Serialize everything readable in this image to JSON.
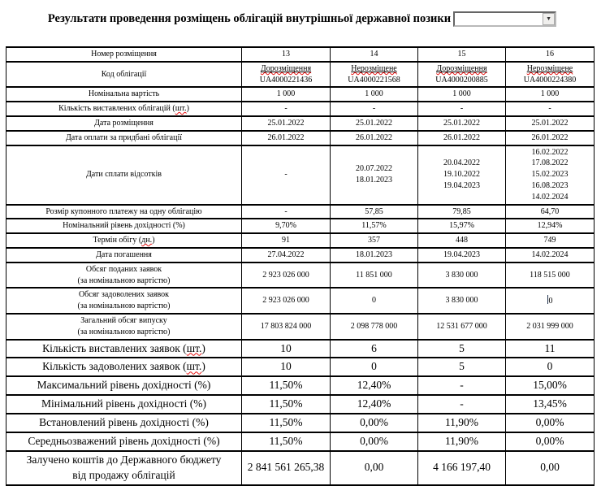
{
  "header": {
    "title": "Результати проведення розміщень облігацій внутрішньої державної позики",
    "combobox": {
      "value": "",
      "dropdown_icon": "▼"
    }
  },
  "colors": {
    "wavy_color": "#e81313",
    "border_color": "#000000",
    "text_color": "#000000"
  },
  "table": {
    "rows": [
      {
        "label": "Номер розміщення",
        "size": "small",
        "cells": [
          "13",
          "14",
          "15",
          "16"
        ]
      },
      {
        "label": "Код облігації",
        "size": "small",
        "cells": [
          {
            "status": "Дорозміщення",
            "code": "UA4000221436"
          },
          {
            "status": "Нерозміщене",
            "code": "UA4000221568"
          },
          {
            "status": "Дорозміщення",
            "code": "UA4000200885"
          },
          {
            "status": "Нерозміщене",
            "code": "UA4000224380"
          }
        ]
      },
      {
        "label": "Номінальна вартість",
        "size": "small",
        "cells": [
          "1 000",
          "1 000",
          "1 000",
          "1 000"
        ]
      },
      {
        "label": "Кількість виставлених облігацій (шт.)",
        "wavy": "шт.",
        "size": "small",
        "cells": [
          "-",
          "-",
          "-",
          "-"
        ]
      },
      {
        "label": "Дата розміщення",
        "size": "small",
        "cells": [
          "25.01.2022",
          "25.01.2022",
          "25.01.2022",
          "25.01.2022"
        ]
      },
      {
        "label": "Дата оплати за придбані облігації",
        "size": "small",
        "cells": [
          "26.01.2022",
          "26.01.2022",
          "26.01.2022",
          "26.01.2022"
        ]
      },
      {
        "label": "Дати сплати відсотків",
        "size": "small",
        "cells": [
          "-",
          {
            "lines": [
              "20.07.2022",
              "18.01.2023"
            ]
          },
          {
            "lines": [
              "20.04.2022",
              "19.10.2022",
              "19.04.2023"
            ]
          },
          {
            "lines": [
              "16.02.2022",
              "17.08.2022",
              "15.02.2023",
              "16.08.2023",
              "14.02.2024"
            ]
          }
        ]
      },
      {
        "label": "Розмір купонного платежу на одну облігацію",
        "size": "small",
        "cells": [
          "-",
          "57,85",
          "79,85",
          "64,70"
        ]
      },
      {
        "label": "Номінальний рівень дохідності (%)",
        "size": "small",
        "cells": [
          "9,70%",
          "11,57%",
          "15,97%",
          "12,94%"
        ]
      },
      {
        "label": "Термін обігу (дн.)",
        "wavy": "дн.",
        "size": "small",
        "cells": [
          "91",
          "357",
          "448",
          "749"
        ]
      },
      {
        "label": "Дата погашення",
        "size": "small",
        "cells": [
          "27.04.2022",
          "18.01.2023",
          "19.04.2023",
          "14.02.2024"
        ]
      },
      {
        "label_lines": [
          "Обсяг поданих заявок",
          "(за номінальною вартістю)"
        ],
        "size": "small",
        "cells": [
          "2 923 026 000",
          "11 851 000",
          "3 830 000",
          "118 515 000"
        ]
      },
      {
        "label_lines": [
          "Обсяг задоволених заявок",
          "(за номінальною вартістю)"
        ],
        "size": "small",
        "cells": [
          "2 923 026 000",
          "0",
          "3 830 000",
          {
            "text": "0",
            "cursor": true
          }
        ]
      },
      {
        "label_lines": [
          "Загальний обсяг випуску",
          "(за номінальною вартістю)"
        ],
        "size": "small",
        "cells": [
          "17 803 824 000",
          "2 098 778 000",
          "12 531 677 000",
          "2 031 999 000"
        ]
      },
      {
        "label": "Кількість виставлених заявок (шт.)",
        "wavy": "шт.",
        "size": "large",
        "cells": [
          "10",
          "6",
          "5",
          "11"
        ]
      },
      {
        "label": "Кількість задоволених заявок (шт.)",
        "wavy": "шт.",
        "size": "large",
        "cells": [
          "10",
          "0",
          "5",
          "0"
        ]
      },
      {
        "label": "Максимальний рівень дохідності (%)",
        "size": "large",
        "cells": [
          "11,50%",
          "12,40%",
          "-",
          "15,00%"
        ]
      },
      {
        "label": "Мінімальний рівень дохідності (%)",
        "size": "large",
        "cells": [
          "11,50%",
          "12,40%",
          "-",
          "13,45%"
        ]
      },
      {
        "label": "Встановлений рівень дохідності (%)",
        "size": "large",
        "cells": [
          "11,50%",
          "0,00%",
          "11,90%",
          "0,00%"
        ]
      },
      {
        "label": "Середньозважений рівень дохідності (%)",
        "size": "large",
        "cells": [
          "11,50%",
          "0,00%",
          "11,90%",
          "0,00%"
        ]
      },
      {
        "label_lines": [
          "Залучено коштів до Державного бюджету",
          "від продажу облігацій"
        ],
        "size": "large",
        "cells": [
          "2 841 561 265,38",
          "0,00",
          "4 166 197,40",
          "0,00"
        ]
      }
    ]
  }
}
